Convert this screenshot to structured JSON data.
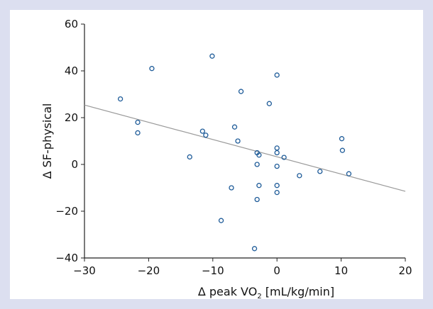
{
  "chart_data": {
    "type": "scatter",
    "title": "",
    "xlabel_prefix": "Δ peak VO",
    "xlabel_sub": "2",
    "xlabel_suffix": " [mL/kg/min]",
    "ylabel": "Δ SF-physical",
    "xlim": [
      -30,
      20
    ],
    "ylim": [
      -40,
      60
    ],
    "xticks": [
      -30,
      -20,
      -10,
      0,
      10,
      20
    ],
    "xtick_labels": [
      "−30",
      "−20",
      "−10",
      "0",
      "10",
      "20"
    ],
    "yticks": [
      -40,
      -20,
      0,
      20,
      40,
      60
    ],
    "ytick_labels": [
      "−40",
      "−20",
      "0",
      "20",
      "40",
      "60"
    ],
    "grid": false,
    "legend": "none",
    "colors": {
      "background": "#dcdff0",
      "plot": "#ffffff",
      "marker": "#1f5c99",
      "trend": "#9a9a9a"
    },
    "trendline": {
      "x": [
        -30,
        20
      ],
      "y": [
        25.4,
        -11.5
      ]
    },
    "points": [
      {
        "x": -24.4,
        "y": 28
      },
      {
        "x": -21.7,
        "y": 18
      },
      {
        "x": -21.7,
        "y": 13.5
      },
      {
        "x": -19.5,
        "y": 41
      },
      {
        "x": -13.6,
        "y": 3.2
      },
      {
        "x": -11.6,
        "y": 14.2
      },
      {
        "x": -11.1,
        "y": 12.5
      },
      {
        "x": -10.1,
        "y": 46.3
      },
      {
        "x": -8.7,
        "y": -24
      },
      {
        "x": -7.1,
        "y": -10
      },
      {
        "x": -6.6,
        "y": 16
      },
      {
        "x": -6.1,
        "y": 10
      },
      {
        "x": -5.6,
        "y": 31.2
      },
      {
        "x": -3.5,
        "y": -36
      },
      {
        "x": -3.1,
        "y": 5
      },
      {
        "x": -3.1,
        "y": 0
      },
      {
        "x": -3.1,
        "y": -15
      },
      {
        "x": -2.8,
        "y": 4
      },
      {
        "x": -2.8,
        "y": -9
      },
      {
        "x": -1.2,
        "y": 26
      },
      {
        "x": 0,
        "y": 38.2
      },
      {
        "x": 0,
        "y": 7
      },
      {
        "x": 0,
        "y": 5
      },
      {
        "x": 0,
        "y": -0.8
      },
      {
        "x": 0,
        "y": -9
      },
      {
        "x": 0,
        "y": -12
      },
      {
        "x": 1.1,
        "y": 3
      },
      {
        "x": 3.5,
        "y": -4.8
      },
      {
        "x": 6.7,
        "y": -3
      },
      {
        "x": 10.1,
        "y": 11
      },
      {
        "x": 10.2,
        "y": 6
      },
      {
        "x": 11.2,
        "y": -4
      }
    ]
  }
}
